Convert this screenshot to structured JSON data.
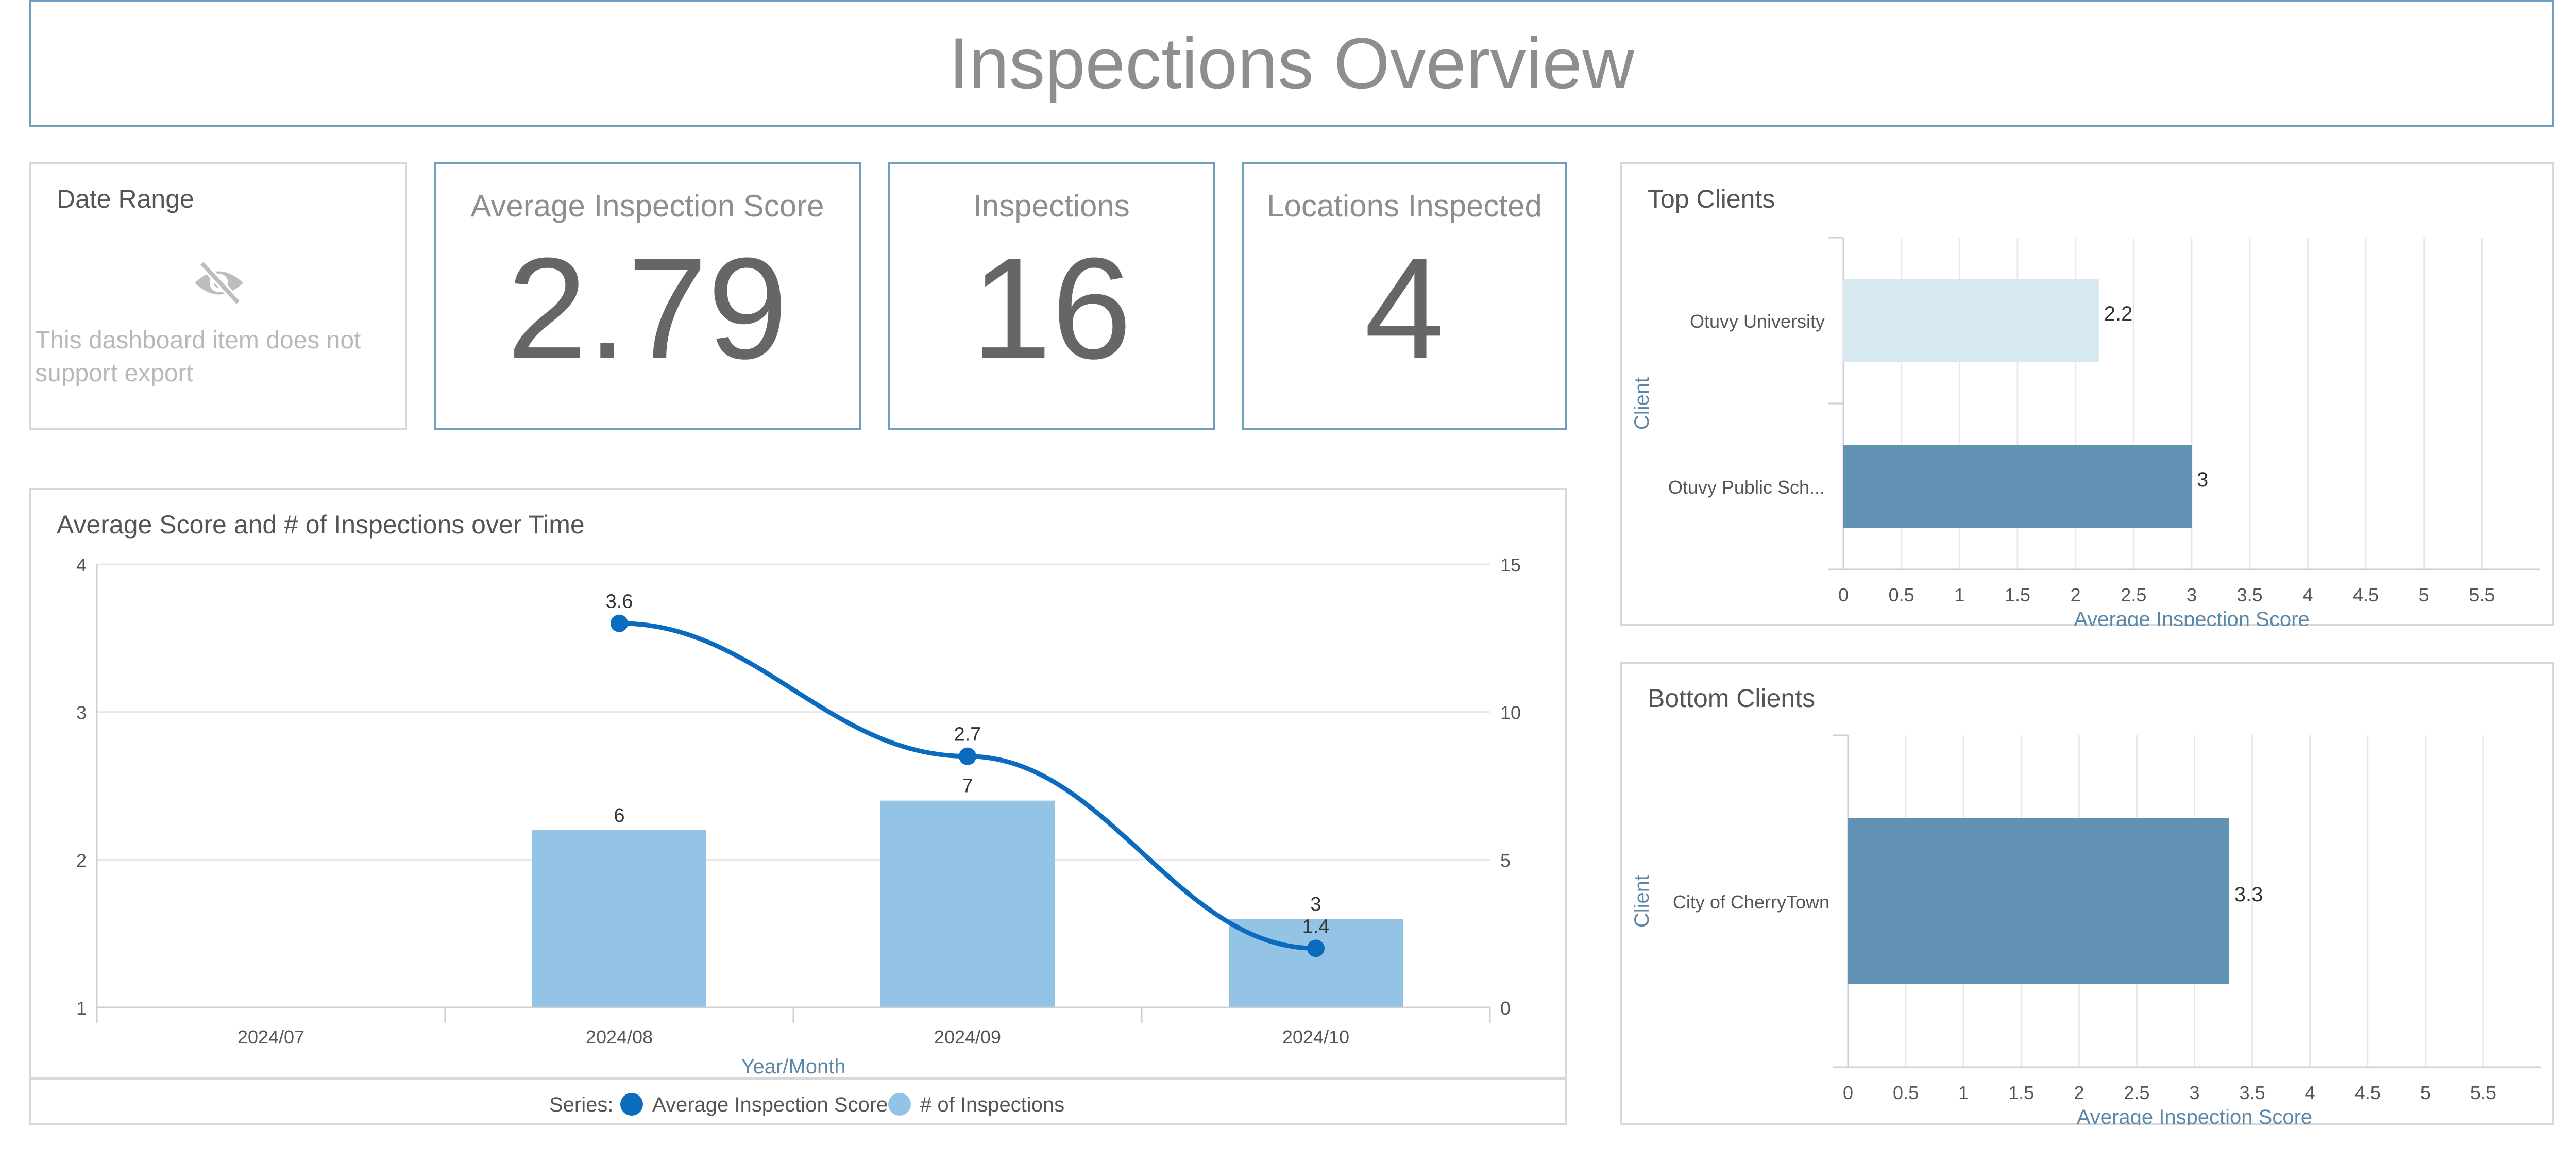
{
  "title": "Inspections Overview",
  "date_range": {
    "caption": "Date Range",
    "icon": "eye-off-icon",
    "message": "This dashboard item does not support export"
  },
  "kpis": [
    {
      "caption": "Average Inspection Score",
      "value": "2.79"
    },
    {
      "caption": "Inspections",
      "value": "16"
    },
    {
      "caption": "Locations Inspected",
      "value": "4"
    }
  ],
  "colors": {
    "dark_bar": "#6192b3",
    "light_bar": "#d6e8f0",
    "line": "#0b6cbf",
    "col": "#93c4e6",
    "axis_title": "#5a87a8",
    "grid": "#e8e8e8"
  },
  "chart_data": [
    {
      "type": "bar+line",
      "title": "Average Score and # of Inspections over Time",
      "xlabel": "Year/Month",
      "categories": [
        "2024/07",
        "2024/08",
        "2024/09",
        "2024/10"
      ],
      "y_left_ticks": [
        "1",
        "2",
        "3",
        "4"
      ],
      "y_left_range": [
        1,
        4
      ],
      "y_right_ticks": [
        "0",
        "5",
        "10",
        "15"
      ],
      "y_right_range": [
        0,
        15
      ],
      "series": [
        {
          "name": "Average Inspection Score",
          "kind": "line",
          "axis": "left",
          "values": [
            null,
            3.6,
            2.7,
            1.4
          ],
          "labels": [
            "",
            "3.6",
            "2.7",
            "1.4"
          ]
        },
        {
          "name": "# of Inspections",
          "kind": "bar",
          "axis": "right",
          "values": [
            null,
            6,
            7,
            3
          ],
          "labels": [
            "",
            "6",
            "7",
            "3"
          ]
        }
      ],
      "legend_prefix": "Series:",
      "legend_position": "bottom"
    },
    {
      "type": "bar",
      "orientation": "horizontal",
      "title": "Top Clients",
      "ylabel": "Client",
      "xlabel": "Average Inspection Score",
      "categories": [
        "Otuvy University",
        "Otuvy Public Sch..."
      ],
      "values": [
        2.2,
        3
      ],
      "labels": [
        "2.2",
        "3"
      ],
      "x_ticks": [
        "0",
        "0.5",
        "1",
        "1.5",
        "2",
        "2.5",
        "3",
        "3.5",
        "4",
        "4.5",
        "5",
        "5.5"
      ],
      "xlim": [
        0,
        6
      ]
    },
    {
      "type": "bar",
      "orientation": "horizontal",
      "title": "Bottom Clients",
      "ylabel": "Client",
      "xlabel": "Average Inspection Score",
      "categories": [
        "City of CherryTown"
      ],
      "values": [
        3.3
      ],
      "labels": [
        "3.3"
      ],
      "x_ticks": [
        "0",
        "0.5",
        "1",
        "1.5",
        "2",
        "2.5",
        "3",
        "3.5",
        "4",
        "4.5",
        "5",
        "5.5"
      ],
      "xlim": [
        0,
        6
      ]
    }
  ]
}
